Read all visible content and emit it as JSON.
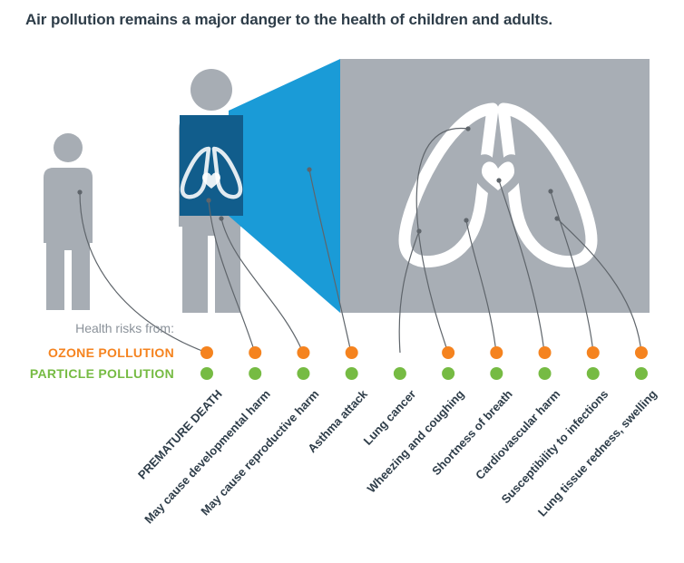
{
  "title": "Air pollution remains a major danger to the health of children and adults.",
  "legend": {
    "intro": "Health risks from:",
    "ozone_label": "OZONE POLLUTION",
    "particle_label": "PARTICLE POLLUTION",
    "ozone_color": "#F5831F",
    "particle_color": "#76BB43"
  },
  "risks": [
    {
      "label": "PREMATURE DEATH",
      "ozone": true,
      "particle": true
    },
    {
      "label": "May cause developmental harm",
      "ozone": true,
      "particle": true
    },
    {
      "label": "May cause reproductive harm",
      "ozone": true,
      "particle": true
    },
    {
      "label": "Asthma attack",
      "ozone": true,
      "particle": true
    },
    {
      "label": "Lung cancer",
      "ozone": false,
      "particle": true
    },
    {
      "label": "Wheezing and coughing",
      "ozone": true,
      "particle": true
    },
    {
      "label": "Shortness of breath",
      "ozone": true,
      "particle": true
    },
    {
      "label": "Cardiovascular harm",
      "ozone": true,
      "particle": true
    },
    {
      "label": "Susceptibility to infections",
      "ozone": true,
      "particle": true
    },
    {
      "label": "Lung tissue redness, swelling",
      "ozone": true,
      "particle": true
    }
  ],
  "chart_data": {
    "type": "table",
    "title": "Air pollution remains a major danger to the health of children and adults.",
    "categories": [
      "PREMATURE DEATH",
      "May cause developmental harm",
      "May cause reproductive harm",
      "Asthma attack",
      "Lung cancer",
      "Wheezing and coughing",
      "Shortness of breath",
      "Cardiovascular harm",
      "Susceptibility to infections",
      "Lung tissue redness, swelling"
    ],
    "series": [
      {
        "name": "OZONE POLLUTION",
        "values": [
          1,
          1,
          1,
          1,
          0,
          1,
          1,
          1,
          1,
          1
        ]
      },
      {
        "name": "PARTICLE POLLUTION",
        "values": [
          1,
          1,
          1,
          1,
          1,
          1,
          1,
          1,
          1,
          1
        ]
      }
    ],
    "legend_position": "left"
  },
  "illustration": {
    "figure_color": "#A7ADB4",
    "beam_color": "#1A9BD7",
    "panel_color": "#115D8C",
    "anatomy_bg_color": "#A8AEB5",
    "line_color": "#5F656B"
  }
}
